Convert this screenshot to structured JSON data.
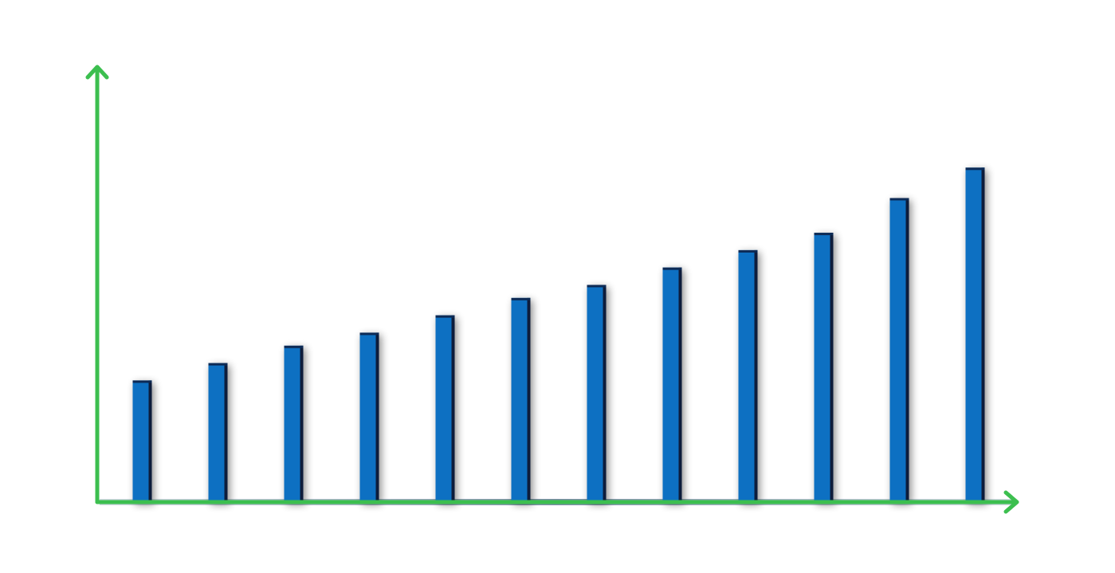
{
  "chart_data": {
    "type": "bar",
    "categories": [
      null,
      null,
      null,
      null,
      null,
      null,
      null,
      null,
      null,
      null,
      null,
      null
    ],
    "values": [
      28,
      32,
      36,
      39,
      43,
      47,
      50,
      54,
      58,
      62,
      70,
      77
    ],
    "color": "#0a6fc2",
    "ylim": [
      0,
      100
    ]
  }
}
